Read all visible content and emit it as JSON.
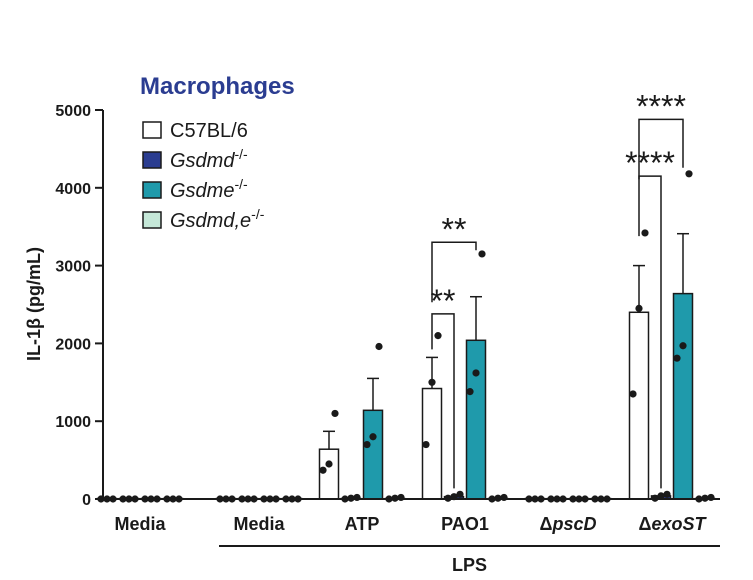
{
  "chart_data": {
    "type": "bar",
    "title": "Macrophages",
    "ylabel": "IL-1β (pg/mL)",
    "ylim": [
      0,
      5000
    ],
    "yticks": [
      0,
      1000,
      2000,
      3000,
      4000,
      5000
    ],
    "categories": [
      {
        "label": "Media",
        "italic": ""
      },
      {
        "label": "Media",
        "italic": ""
      },
      {
        "label": "ATP",
        "italic": ""
      },
      {
        "label": "PAO1",
        "italic": ""
      },
      {
        "label": "Δ",
        "italic": "pscD"
      },
      {
        "label": "Δ",
        "italic": "exoST"
      }
    ],
    "group_label": "LPS",
    "group_span": [
      1,
      5
    ],
    "series": [
      {
        "name": "C57BL/6",
        "sup": "",
        "color": "#ffffff",
        "values": [
          0,
          0,
          640,
          1420,
          0,
          2400
        ],
        "errors": [
          0,
          0,
          230,
          400,
          0,
          600
        ],
        "points": [
          [
            0,
            0,
            0
          ],
          [
            0,
            0,
            0
          ],
          [
            370,
            450,
            1100
          ],
          [
            700,
            1500,
            2100
          ],
          [
            0,
            0,
            0
          ],
          [
            1350,
            2450,
            3420
          ]
        ]
      },
      {
        "name": "Gsdmd",
        "sup": "-/-",
        "color": "#2b3d91",
        "values": [
          0,
          0,
          0,
          30,
          0,
          40
        ],
        "errors": [
          0,
          0,
          0,
          0,
          0,
          0
        ],
        "points": [
          [
            0,
            0,
            0
          ],
          [
            0,
            0,
            0
          ],
          [
            0,
            10,
            20
          ],
          [
            10,
            30,
            60
          ],
          [
            0,
            0,
            0
          ],
          [
            10,
            40,
            60
          ]
        ]
      },
      {
        "name": "Gsdme",
        "sup": "-/-",
        "color": "#1f9aab",
        "values": [
          0,
          0,
          1140,
          2040,
          0,
          2640
        ],
        "errors": [
          0,
          0,
          410,
          560,
          0,
          770
        ],
        "points": [
          [
            0,
            0,
            0
          ],
          [
            0,
            0,
            0
          ],
          [
            700,
            800,
            1960
          ],
          [
            1380,
            1620,
            3150
          ],
          [
            0,
            0,
            0
          ],
          [
            1810,
            1970,
            4180
          ]
        ]
      },
      {
        "name": "Gsdmd,e",
        "sup": "-/-",
        "color": "#c5e8d8",
        "values": [
          0,
          0,
          0,
          0,
          0,
          0
        ],
        "errors": [
          0,
          0,
          0,
          0,
          0,
          0
        ],
        "points": [
          [
            0,
            0,
            0
          ],
          [
            0,
            0,
            0
          ],
          [
            0,
            10,
            20
          ],
          [
            0,
            10,
            20
          ],
          [
            0,
            0,
            0
          ],
          [
            0,
            10,
            20
          ]
        ]
      }
    ],
    "significance": [
      {
        "category": 3,
        "from": 0,
        "to": 1,
        "label": "**",
        "y": 2380
      },
      {
        "category": 3,
        "from": 0,
        "to": 2,
        "label": "**",
        "y": 3300
      },
      {
        "category": 5,
        "from": 0,
        "to": 1,
        "label": "****",
        "y": 4150
      },
      {
        "category": 5,
        "from": 0,
        "to": 2,
        "label": "****",
        "y": 4880
      }
    ],
    "title_color": "#2b3d91",
    "legend_position": "top-left"
  }
}
